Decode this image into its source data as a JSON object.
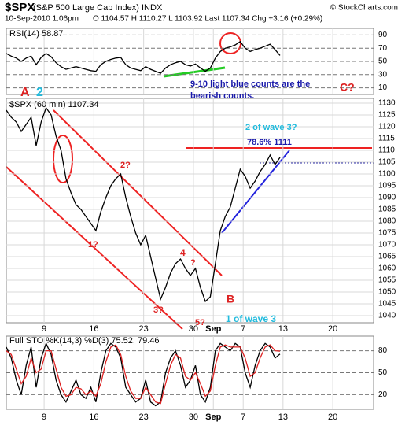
{
  "header": {
    "symbol": "$SPX",
    "name": "(S&P 500 Large Cap Index) INDX",
    "date": "10-Sep-2010 1:06pm",
    "quote": "O 1104.57  H 1110.27  L 1103.92  Last 1107.34  Chg +3.16 (+0.29%)",
    "credit": "© StockCharts.com"
  },
  "chart_data": [
    {
      "type": "line",
      "title": "$SPX (60 min) 1107.34",
      "x": [
        -3.8,
        -3.3,
        -2.8,
        -2.3,
        -1.8,
        -1.3,
        -0.8,
        -0.3,
        0.2,
        0.7,
        1.2,
        1.7,
        2.2,
        2.7,
        3.2,
        3.7,
        4.2,
        4.7,
        5.2,
        5.7,
        6.2,
        6.7,
        7.2,
        7.7,
        8.2,
        8.7,
        9.2,
        9.7,
        10.2,
        10.7,
        11.2,
        11.7,
        12.2,
        12.7,
        13.2,
        13.7,
        14.2,
        14.7,
        15.2,
        15.7,
        16.2,
        16.7,
        17.2,
        17.7,
        18.2,
        18.7,
        19.2,
        19.7,
        20.2,
        20.7,
        21.2,
        21.7,
        22.2,
        22.7,
        23.2,
        23.7
      ],
      "series": [
        {
          "name": "$SPX",
          "color": "#000000",
          "values": [
            1127,
            1124,
            1122,
            1118,
            1121,
            1124,
            1112,
            1122,
            1128,
            1125,
            1116,
            1110,
            1098,
            1092,
            1087,
            1085,
            1082,
            1079,
            1076,
            1084,
            1090,
            1095,
            1098,
            1100,
            1090,
            1082,
            1075,
            1070,
            1074,
            1065,
            1056,
            1047,
            1052,
            1058,
            1062,
            1064,
            1060,
            1057,
            1060,
            1052,
            1046,
            1048,
            1062,
            1076,
            1082,
            1086,
            1094,
            1102,
            1099,
            1094,
            1097,
            1101,
            1104,
            1108,
            1104,
            1107
          ]
        }
      ],
      "xlim": [
        -3.8,
        33.1
      ],
      "xticks": [
        {
          "value": 0,
          "label": "9"
        },
        {
          "value": 5,
          "label": "16"
        },
        {
          "value": 10,
          "label": "23"
        },
        {
          "value": 15,
          "label": "30"
        },
        {
          "value": 17,
          "label": "Sep"
        },
        {
          "value": 20,
          "label": "7"
        },
        {
          "value": 24,
          "label": "13"
        },
        {
          "value": 29,
          "label": "20"
        }
      ],
      "ylim": [
        1037,
        1132
      ],
      "yticks": [
        1040,
        1045,
        1050,
        1055,
        1060,
        1065,
        1070,
        1075,
        1080,
        1085,
        1090,
        1095,
        1100,
        1105,
        1110,
        1115,
        1120,
        1125,
        1130
      ],
      "grid": true,
      "annotations": [
        {
          "text": "A",
          "color": "#dd2222"
        },
        {
          "text": "2",
          "color": "#22bbdd"
        },
        {
          "text": "1?",
          "color": "#dd2222"
        },
        {
          "text": "2?",
          "color": "#dd2222"
        },
        {
          "text": "3?",
          "color": "#dd2222"
        },
        {
          "text": "4",
          "color": "#dd2222"
        },
        {
          "text": "?",
          "color": "#dd2222"
        },
        {
          "text": "5?",
          "color": "#dd2222"
        },
        {
          "text": "B",
          "color": "#dd2222"
        },
        {
          "text": "1 of wave 3",
          "color": "#22bbdd"
        },
        {
          "text": "2 of wave 3?",
          "color": "#22bbdd"
        },
        {
          "text": "78.6% 1111",
          "color": "#1a1aaa"
        },
        {
          "text": "9-10 light blue counts are the",
          "color": "#1a1aaa"
        },
        {
          "text": "bearish counts.",
          "color": "#1a1aaa"
        },
        {
          "text": "C?",
          "color": "#dd2222"
        }
      ]
    },
    {
      "type": "line",
      "title": "RSI(14) 58.87",
      "x": [
        -3.8,
        -3.3,
        -2.8,
        -2.3,
        -1.8,
        -1.3,
        -0.8,
        -0.3,
        0.2,
        0.7,
        1.2,
        1.7,
        2.2,
        2.7,
        3.2,
        3.7,
        4.2,
        4.7,
        5.2,
        5.7,
        6.2,
        6.7,
        7.2,
        7.7,
        8.2,
        8.7,
        9.2,
        9.7,
        10.2,
        10.7,
        11.2,
        11.7,
        12.2,
        12.7,
        13.2,
        13.7,
        14.2,
        14.7,
        15.2,
        15.7,
        16.2,
        16.7,
        17.2,
        17.7,
        18.2,
        18.7,
        19.2,
        19.7,
        20.2,
        20.7,
        21.2,
        21.7,
        22.2,
        22.7,
        23.2,
        23.7
      ],
      "series": [
        {
          "name": "RSI(14)",
          "color": "#000000",
          "values": [
            62,
            58,
            55,
            50,
            55,
            58,
            45,
            56,
            62,
            57,
            48,
            42,
            38,
            40,
            42,
            40,
            38,
            36,
            35,
            45,
            50,
            53,
            55,
            56,
            45,
            40,
            38,
            36,
            42,
            38,
            35,
            32,
            40,
            45,
            48,
            50,
            45,
            43,
            46,
            40,
            35,
            40,
            55,
            65,
            70,
            72,
            75,
            80,
            70,
            65,
            68,
            70,
            73,
            76,
            68,
            59
          ]
        }
      ],
      "xlim": [
        -3.8,
        33.1
      ],
      "ylim": [
        0,
        100
      ],
      "yticks": [
        10,
        30,
        50,
        70,
        90
      ]
    },
    {
      "type": "line",
      "title": "Full STO %K(14,3) %D(3) 75.52, 79.46",
      "x": [
        -3.8,
        -3.3,
        -2.8,
        -2.3,
        -1.8,
        -1.3,
        -0.8,
        -0.3,
        0.2,
        0.7,
        1.2,
        1.7,
        2.2,
        2.7,
        3.2,
        3.7,
        4.2,
        4.7,
        5.2,
        5.7,
        6.2,
        6.7,
        7.2,
        7.7,
        8.2,
        8.7,
        9.2,
        9.7,
        10.2,
        10.7,
        11.2,
        11.7,
        12.2,
        12.7,
        13.2,
        13.7,
        14.2,
        14.7,
        15.2,
        15.7,
        16.2,
        16.7,
        17.2,
        17.7,
        18.2,
        18.7,
        19.2,
        19.7,
        20.2,
        20.7,
        21.2,
        21.7,
        22.2,
        22.7,
        23.2,
        23.7
      ],
      "series": [
        {
          "name": "%K(14,3)",
          "color": "#000000",
          "values": [
            85,
            70,
            40,
            20,
            60,
            85,
            30,
            70,
            90,
            75,
            40,
            20,
            10,
            25,
            40,
            20,
            15,
            30,
            10,
            50,
            80,
            90,
            85,
            70,
            30,
            20,
            10,
            15,
            40,
            10,
            5,
            10,
            50,
            70,
            80,
            60,
            30,
            40,
            60,
            20,
            10,
            30,
            80,
            90,
            85,
            80,
            90,
            85,
            50,
            30,
            60,
            80,
            90,
            85,
            70,
            75.52
          ]
        },
        {
          "name": "%D(3)",
          "color": "#dd2222",
          "values": [
            80,
            75,
            55,
            35,
            45,
            70,
            50,
            55,
            80,
            80,
            55,
            30,
            18,
            20,
            30,
            28,
            20,
            25,
            18,
            35,
            65,
            85,
            88,
            75,
            45,
            25,
            15,
            15,
            30,
            20,
            10,
            8,
            35,
            60,
            75,
            70,
            45,
            40,
            50,
            35,
            18,
            25,
            60,
            85,
            88,
            85,
            85,
            85,
            70,
            45,
            50,
            70,
            85,
            88,
            80,
            79.46
          ]
        }
      ],
      "xlim": [
        -3.8,
        33.1
      ],
      "ylim": [
        0,
        100
      ],
      "yticks": [
        20,
        50,
        80
      ]
    }
  ]
}
